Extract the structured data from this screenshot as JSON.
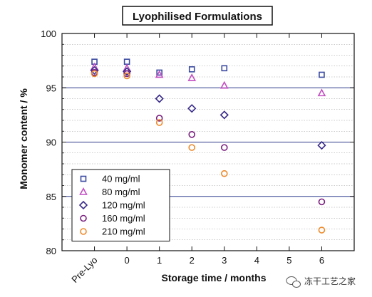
{
  "chart_data": {
    "type": "scatter",
    "title": "Lyophilised Formulations",
    "xlabel": "Storage time / months",
    "ylabel": "Monomer content / %",
    "ylim": [
      80,
      100
    ],
    "xlim": [
      -2,
      7
    ],
    "x_ticks": [
      {
        "x": -1,
        "label": "Pre-Lyo"
      },
      {
        "x": 0,
        "label": "0"
      },
      {
        "x": 1,
        "label": "1"
      },
      {
        "x": 2,
        "label": "2"
      },
      {
        "x": 3,
        "label": "3"
      },
      {
        "x": 4,
        "label": "4"
      },
      {
        "x": 5,
        "label": "5"
      },
      {
        "x": 6,
        "label": "6"
      }
    ],
    "y_ticks": [
      80,
      85,
      90,
      95,
      100
    ],
    "reference_lines": [
      85,
      90,
      95
    ],
    "grid": "dotted horizontal",
    "legend_position": "bottom-left",
    "series": [
      {
        "name": "40 mg/ml",
        "marker": "square",
        "color": "#3a4aa0",
        "points": [
          [
            -1,
            97.4
          ],
          [
            0,
            97.4
          ],
          [
            1,
            96.4
          ],
          [
            2,
            96.7
          ],
          [
            3,
            96.8
          ],
          [
            6,
            96.2
          ]
        ]
      },
      {
        "name": "80 mg/ml",
        "marker": "triangle",
        "color": "#c24fc2",
        "points": [
          [
            -1,
            96.9
          ],
          [
            0,
            96.8
          ],
          [
            1,
            96.2
          ],
          [
            2,
            95.9
          ],
          [
            3,
            95.2
          ],
          [
            6,
            94.5
          ]
        ]
      },
      {
        "name": "120 mg/ml",
        "marker": "diamond",
        "color": "#3a2c8a",
        "points": [
          [
            -1,
            96.6
          ],
          [
            0,
            96.5
          ],
          [
            1,
            94.0
          ],
          [
            2,
            93.1
          ],
          [
            3,
            92.5
          ],
          [
            6,
            89.7
          ]
        ]
      },
      {
        "name": "160 mg/ml",
        "marker": "circle",
        "color": "#7a1f7f",
        "points": [
          [
            -1,
            96.4
          ],
          [
            0,
            96.3
          ],
          [
            1,
            92.2
          ],
          [
            2,
            90.7
          ],
          [
            3,
            89.5
          ],
          [
            6,
            84.5
          ]
        ]
      },
      {
        "name": "210 mg/ml",
        "marker": "circle",
        "color": "#ee8a2a",
        "points": [
          [
            -1,
            96.3
          ],
          [
            0,
            96.1
          ],
          [
            1,
            91.8
          ],
          [
            2,
            89.5
          ],
          [
            3,
            87.1
          ],
          [
            6,
            81.9
          ]
        ]
      }
    ]
  },
  "watermark": {
    "text": "冻干工艺之家",
    "icon": "wechat-icon"
  }
}
